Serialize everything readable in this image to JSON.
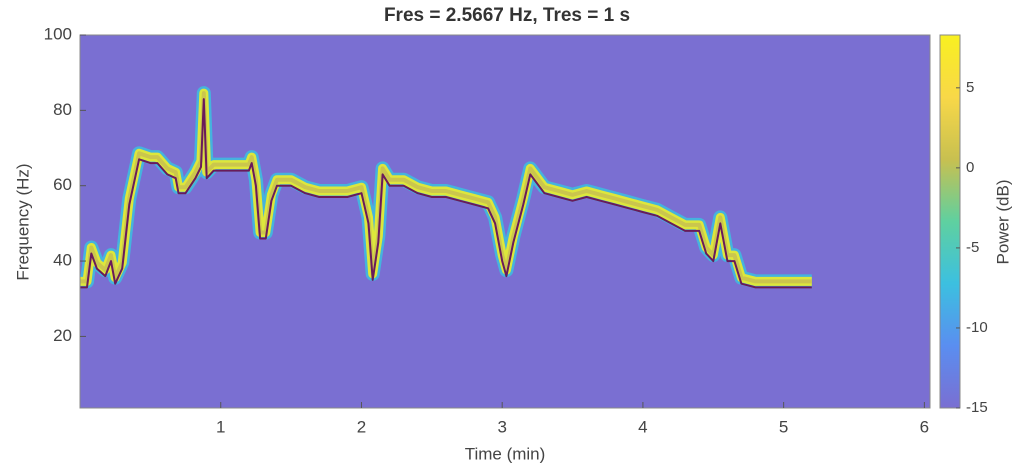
{
  "chart_data": {
    "type": "line",
    "title": "Fres = 2.5667 Hz, Tres = 1 s",
    "x_label": "Time (min)",
    "y_label": "Frequency (Hz)",
    "colorbar_label": "Power (dB)",
    "background": "#7a6fd2",
    "xlim": [
      0,
      6.04
    ],
    "xticks": [
      1,
      2,
      3,
      4,
      5,
      6
    ],
    "ylim": [
      1,
      100
    ],
    "yticks": [
      20,
      40,
      60,
      80,
      100
    ],
    "clim": [
      -15,
      8.3
    ],
    "cticks": [
      -15,
      -10,
      -5,
      0,
      5
    ],
    "colormap": [
      "#7a6fd2",
      "#5a8ef0",
      "#3cc0e0",
      "#5fd0a0",
      "#c8c050",
      "#f8d848",
      "#f8f020"
    ],
    "x": [
      0,
      0.05,
      0.08,
      0.12,
      0.18,
      0.22,
      0.25,
      0.3,
      0.35,
      0.42,
      0.5,
      0.55,
      0.62,
      0.68,
      0.7,
      0.75,
      0.82,
      0.86,
      0.88,
      0.9,
      0.95,
      1.0,
      1.1,
      1.2,
      1.22,
      1.25,
      1.28,
      1.32,
      1.36,
      1.4,
      1.5,
      1.6,
      1.7,
      1.8,
      1.9,
      2.0,
      2.05,
      2.08,
      2.12,
      2.15,
      2.2,
      2.3,
      2.4,
      2.5,
      2.6,
      2.7,
      2.8,
      2.9,
      2.95,
      3.0,
      3.03,
      3.08,
      3.15,
      3.2,
      3.3,
      3.4,
      3.5,
      3.6,
      3.7,
      3.8,
      3.9,
      4.0,
      4.1,
      4.2,
      4.3,
      4.4,
      4.45,
      4.5,
      4.55,
      4.6,
      4.65,
      4.7,
      4.8,
      5.0,
      5.2
    ],
    "series": [
      {
        "color": "#6a1a5a",
        "values": [
          33,
          33,
          42,
          38,
          36,
          40,
          34,
          38,
          55,
          67,
          66,
          66,
          63,
          62,
          58,
          58,
          62,
          65,
          83,
          62,
          64,
          64,
          64,
          64,
          66,
          60,
          46,
          46,
          56,
          60,
          60,
          58,
          57,
          57,
          57,
          58,
          50,
          35,
          45,
          63,
          60,
          60,
          58,
          57,
          57,
          56,
          55,
          54,
          50,
          40,
          36,
          45,
          55,
          63,
          58,
          57,
          56,
          57,
          56,
          55,
          54,
          53,
          52,
          50,
          48,
          48,
          42,
          40,
          50,
          40,
          40,
          34,
          33,
          33,
          33
        ]
      }
    ]
  }
}
